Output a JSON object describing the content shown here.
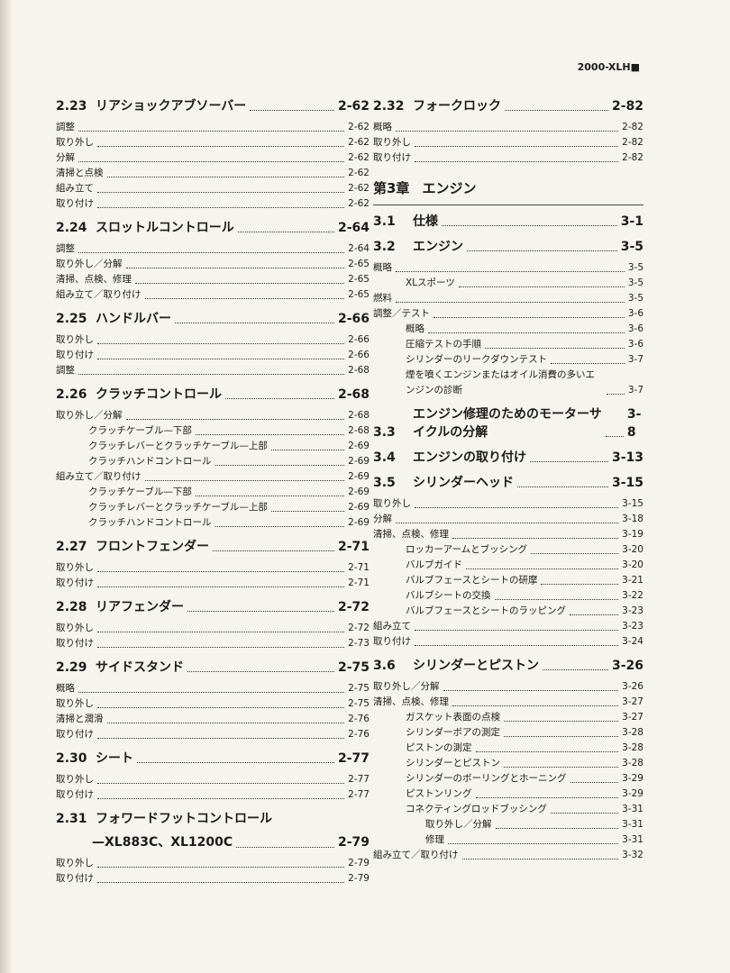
{
  "header": "2000-XLH■",
  "left": [
    {
      "num": "2.23",
      "title": "リアショックアブソーバー",
      "page": "2-62",
      "entries": [
        {
          "text": "調整",
          "page": "2-62"
        },
        {
          "text": "取り外し",
          "page": "2-62"
        },
        {
          "text": "分解",
          "page": "2-62"
        },
        {
          "text": "清掃と点検",
          "page": "2-62"
        },
        {
          "text": "組み立て",
          "page": "2-62"
        },
        {
          "text": "取り付け",
          "page": "2-62"
        }
      ]
    },
    {
      "num": "2.24",
      "title": "スロットルコントロール",
      "page": "2-64",
      "entries": [
        {
          "text": "調整",
          "page": "2-64"
        },
        {
          "text": "取り外し／分解",
          "page": "2-65"
        },
        {
          "text": "清掃、点検、修理",
          "page": "2-65"
        },
        {
          "text": "組み立て／取り付け",
          "page": "2-65"
        }
      ]
    },
    {
      "num": "2.25",
      "title": "ハンドルバー",
      "page": "2-66",
      "entries": [
        {
          "text": "取り外し",
          "page": "2-66"
        },
        {
          "text": "取り付け",
          "page": "2-66"
        },
        {
          "text": "調整",
          "page": "2-68"
        }
      ]
    },
    {
      "num": "2.26",
      "title": "クラッチコントロール",
      "page": "2-68",
      "entries": [
        {
          "text": "取り外し／分解",
          "page": "2-68",
          "children": [
            {
              "text": "クラッチケーブル—下部",
              "page": "2-68"
            },
            {
              "text": "クラッチレバーとクラッチケーブル—上部",
              "page": "2-69"
            },
            {
              "text": "クラッチハンドコントロール",
              "page": "2-69"
            }
          ]
        },
        {
          "text": "組み立て／取り付け",
          "page": "2-69",
          "children": [
            {
              "text": "クラッチケーブル—下部",
              "page": "2-69"
            },
            {
              "text": "クラッチレバーとクラッチケーブル—上部",
              "page": "2-69"
            },
            {
              "text": "クラッチハンドコントロール",
              "page": "2-69"
            }
          ]
        }
      ]
    },
    {
      "num": "2.27",
      "title": "フロントフェンダー",
      "page": "2-71",
      "entries": [
        {
          "text": "取り外し",
          "page": "2-71"
        },
        {
          "text": "取り付け",
          "page": "2-71"
        }
      ]
    },
    {
      "num": "2.28",
      "title": "リアフェンダー",
      "page": "2-72",
      "entries": [
        {
          "text": "取り外し",
          "page": "2-72"
        },
        {
          "text": "取り付け",
          "page": "2-73"
        }
      ]
    },
    {
      "num": "2.29",
      "title": "サイドスタンド",
      "page": "2-75",
      "entries": [
        {
          "text": "概略",
          "page": "2-75"
        },
        {
          "text": "取り外し",
          "page": "2-75"
        },
        {
          "text": "清掃と潤滑",
          "page": "2-76"
        },
        {
          "text": "取り付け",
          "page": "2-76"
        }
      ]
    },
    {
      "num": "2.30",
      "title": "シート",
      "page": "2-77",
      "entries": [
        {
          "text": "取り外し",
          "page": "2-77"
        },
        {
          "text": "取り付け",
          "page": "2-77"
        }
      ]
    },
    {
      "num": "2.31",
      "title": "フォワードフットコントロール",
      "subtitle": "—XL883C、XL1200C",
      "page": "2-79",
      "entries": [
        {
          "text": "取り外し",
          "page": "2-79"
        },
        {
          "text": "取り付け",
          "page": "2-79"
        }
      ]
    }
  ],
  "right_top": [
    {
      "num": "2.32",
      "title": "フォークロック",
      "page": "2-82",
      "entries": [
        {
          "text": "概略",
          "page": "2-82"
        },
        {
          "text": "取り外し",
          "page": "2-82"
        },
        {
          "text": "取り付け",
          "page": "2-82"
        }
      ]
    }
  ],
  "chapter": {
    "label": "第3章",
    "title": "エンジン"
  },
  "right": [
    {
      "num": "3.1",
      "title": "仕様",
      "page": "3-1",
      "entries": []
    },
    {
      "num": "3.2",
      "title": "エンジン",
      "page": "3-5",
      "entries": [
        {
          "text": "概略",
          "page": "3-5",
          "children": [
            {
              "text": "XLスポーツ",
              "page": "3-5"
            }
          ]
        },
        {
          "text": "燃料",
          "page": "3-5"
        },
        {
          "text": "調整／テスト",
          "page": "3-6",
          "children": [
            {
              "text": "概略",
              "page": "3-6"
            },
            {
              "text": "圧縮テストの手順",
              "page": "3-6"
            },
            {
              "text": "シリンダーのリークダウンテスト",
              "page": "3-7"
            },
            {
              "text": "煙を噴くエンジンまたはオイル消費の多いエンジンの診断",
              "page": "3-7"
            }
          ]
        }
      ]
    },
    {
      "num": "3.3",
      "title": "エンジン修理のためのモーターサイクルの分解",
      "page": "3-8",
      "entries": []
    },
    {
      "num": "3.4",
      "title": "エンジンの取り付け",
      "page": "3-13",
      "entries": []
    },
    {
      "num": "3.5",
      "title": "シリンダーヘッド",
      "page": "3-15",
      "entries": [
        {
          "text": "取り外し",
          "page": "3-15"
        },
        {
          "text": "分解",
          "page": "3-18"
        },
        {
          "text": "清掃、点検、修理",
          "page": "3-19",
          "children": [
            {
              "text": "ロッカーアームとブッシング",
              "page": "3-20"
            },
            {
              "text": "バルブガイド",
              "page": "3-20"
            },
            {
              "text": "バルブフェースとシートの研摩",
              "page": "3-21"
            },
            {
              "text": "バルブシートの交換",
              "page": "3-22"
            },
            {
              "text": "バルブフェースとシートのラッピング",
              "page": "3-23"
            }
          ]
        },
        {
          "text": "組み立て",
          "page": "3-23"
        },
        {
          "text": "取り付け",
          "page": "3-24"
        }
      ]
    },
    {
      "num": "3.6",
      "title": "シリンダーとピストン",
      "page": "3-26",
      "entries": [
        {
          "text": "取り外し／分解",
          "page": "3-26"
        },
        {
          "text": "清掃、点検、修理",
          "page": "3-27",
          "children": [
            {
              "text": "ガスケット表面の点検",
              "page": "3-27"
            },
            {
              "text": "シリンダーボアの測定",
              "page": "3-28"
            },
            {
              "text": "ピストンの測定",
              "page": "3-28"
            },
            {
              "text": "シリンダーとピストン",
              "page": "3-28"
            },
            {
              "text": "シリンダーのボーリングとホーニング",
              "page": "3-29"
            },
            {
              "text": "ピストンリング",
              "page": "3-29"
            },
            {
              "text": "コネクティングロッドブッシング",
              "page": "3-31",
              "children": [
                {
                  "text": "取り外し／分解",
                  "page": "3-31"
                },
                {
                  "text": "修理",
                  "page": "3-31"
                }
              ]
            }
          ]
        },
        {
          "text": "組み立て／取り付け",
          "page": "3-32"
        }
      ]
    }
  ]
}
